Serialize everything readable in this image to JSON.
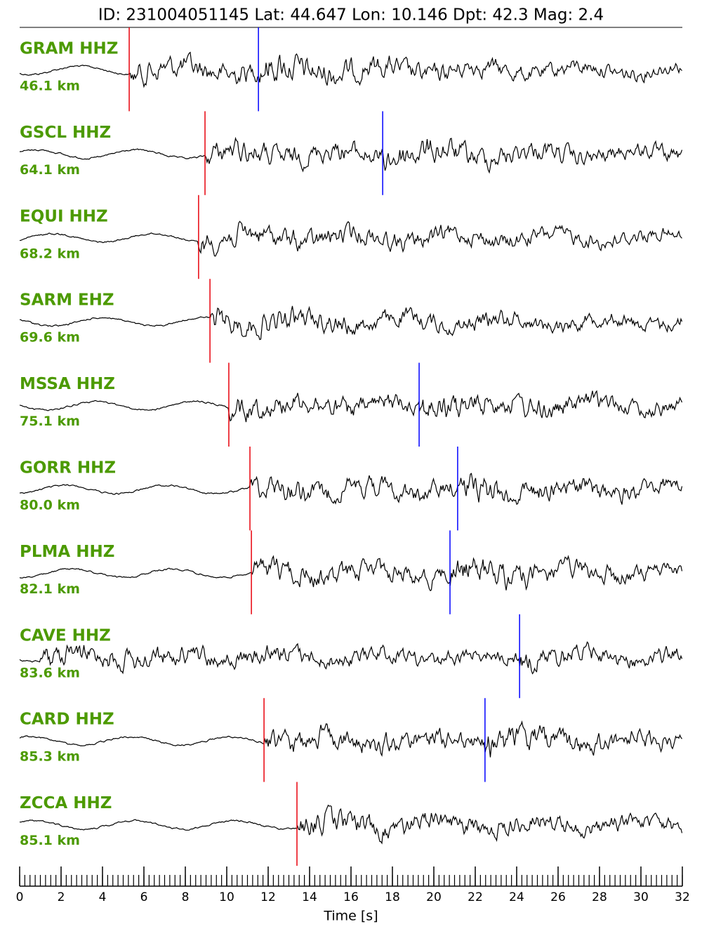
{
  "chart_data": {
    "type": "seismogram",
    "title": "ID: 231004051145 Lat:  44.647 Lon:  10.146 Dpt:    42.3 Mag:   2.4",
    "xlabel": "Time [s]",
    "xlim": [
      0,
      32
    ],
    "xticks": [
      0,
      2,
      4,
      6,
      8,
      10,
      12,
      14,
      16,
      18,
      20,
      22,
      24,
      26,
      28,
      30,
      32
    ],
    "xminor": 0.25,
    "label_color": "#4c9a00",
    "p_color": "#e8000b",
    "s_color": "#0000ff",
    "traces": [
      {
        "station": "GRAM HHZ",
        "distance": "46.1 km",
        "p_pick": 5.29,
        "s_pick": 11.53
      },
      {
        "station": "GSCL HHZ",
        "distance": "64.1 km",
        "p_pick": 8.95,
        "s_pick": 17.53
      },
      {
        "station": "EQUI HHZ",
        "distance": "68.2 km",
        "p_pick": 8.64,
        "s_pick": null
      },
      {
        "station": "SARM EHZ",
        "distance": "69.6 km",
        "p_pick": 9.19,
        "s_pick": null
      },
      {
        "station": "MSSA HHZ",
        "distance": "75.1 km",
        "p_pick": 10.1,
        "s_pick": 19.29
      },
      {
        "station": "GORR HHZ",
        "distance": "80.0 km",
        "p_pick": 11.12,
        "s_pick": 21.15
      },
      {
        "station": "PLMA HHZ",
        "distance": "82.1 km",
        "p_pick": 11.19,
        "s_pick": 20.78
      },
      {
        "station": "CAVE HHZ",
        "distance": "83.6 km",
        "p_pick": null,
        "s_pick": 24.14
      },
      {
        "station": "CARD HHZ",
        "distance": "85.3 km",
        "p_pick": 11.8,
        "s_pick": 22.47
      },
      {
        "station": "ZCCA HHZ",
        "distance": "85.1 km",
        "p_pick": 13.39,
        "s_pick": null
      }
    ]
  }
}
